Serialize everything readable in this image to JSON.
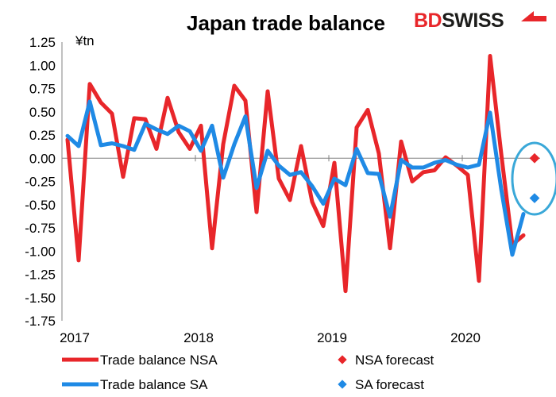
{
  "brand": {
    "prefix": "BD",
    "suffix": "SWISS",
    "prefix_color": "#e8262a",
    "suffix_color": "#1d1d1b",
    "icon": "brand-arrow-icon"
  },
  "chart_data": {
    "type": "line",
    "title": "Japan trade balance",
    "unit_label": "¥tn",
    "ylim": [
      -1.75,
      1.25
    ],
    "yticks": [
      "1.25",
      "1.00",
      "0.75",
      "0.50",
      "0.25",
      "0.00",
      "-0.25",
      "-0.50",
      "-0.75",
      "-1.00",
      "-1.25",
      "-1.50",
      "-1.75"
    ],
    "ytick_values": [
      1.25,
      1.0,
      0.75,
      0.5,
      0.25,
      0.0,
      -0.25,
      -0.5,
      -0.75,
      -1.0,
      -1.25,
      -1.5,
      -1.75
    ],
    "x_labels": [
      "2017",
      "2018",
      "2019",
      "2020"
    ],
    "x_label_index": [
      0,
      12,
      24,
      36
    ],
    "n_periods": 43,
    "series": [
      {
        "name": "Trade balance NSA",
        "color": "#e8262a",
        "values": [
          0.2,
          -1.1,
          0.8,
          0.6,
          0.48,
          -0.2,
          0.43,
          0.42,
          0.1,
          0.65,
          0.28,
          0.1,
          0.35,
          -0.97,
          0.15,
          0.78,
          0.62,
          -0.58,
          0.72,
          -0.22,
          -0.45,
          0.13,
          -0.47,
          -0.73,
          -0.05,
          -1.43,
          0.33,
          0.52,
          0.05,
          -0.97,
          0.18,
          -0.25,
          -0.15,
          -0.13,
          0.01,
          -0.08,
          -0.18,
          -1.32,
          1.1,
          0.05,
          -0.93,
          -0.83
        ]
      },
      {
        "name": "Trade balance SA",
        "color": "#1f8ae5",
        "values": [
          0.24,
          0.13,
          0.61,
          0.14,
          0.16,
          0.13,
          0.09,
          0.37,
          0.31,
          0.26,
          0.35,
          0.29,
          0.08,
          0.35,
          -0.21,
          0.15,
          0.45,
          -0.32,
          0.08,
          -0.08,
          -0.18,
          -0.15,
          -0.3,
          -0.49,
          -0.22,
          -0.29,
          0.1,
          -0.16,
          -0.17,
          -0.63,
          -0.02,
          -0.1,
          -0.1,
          -0.05,
          -0.02,
          -0.07,
          -0.1,
          -0.07,
          0.49,
          -0.33,
          -1.04,
          -0.6
        ]
      }
    ],
    "forecasts": [
      {
        "name": "NSA forecast",
        "color": "#e8262a",
        "index": 42,
        "value": 0.0
      },
      {
        "name": "SA forecast",
        "color": "#1f8ae5",
        "index": 42,
        "value": -0.43
      }
    ],
    "highlight_circle": {
      "color": "#3aa8d8",
      "index": 42,
      "center_value": -0.22
    }
  }
}
